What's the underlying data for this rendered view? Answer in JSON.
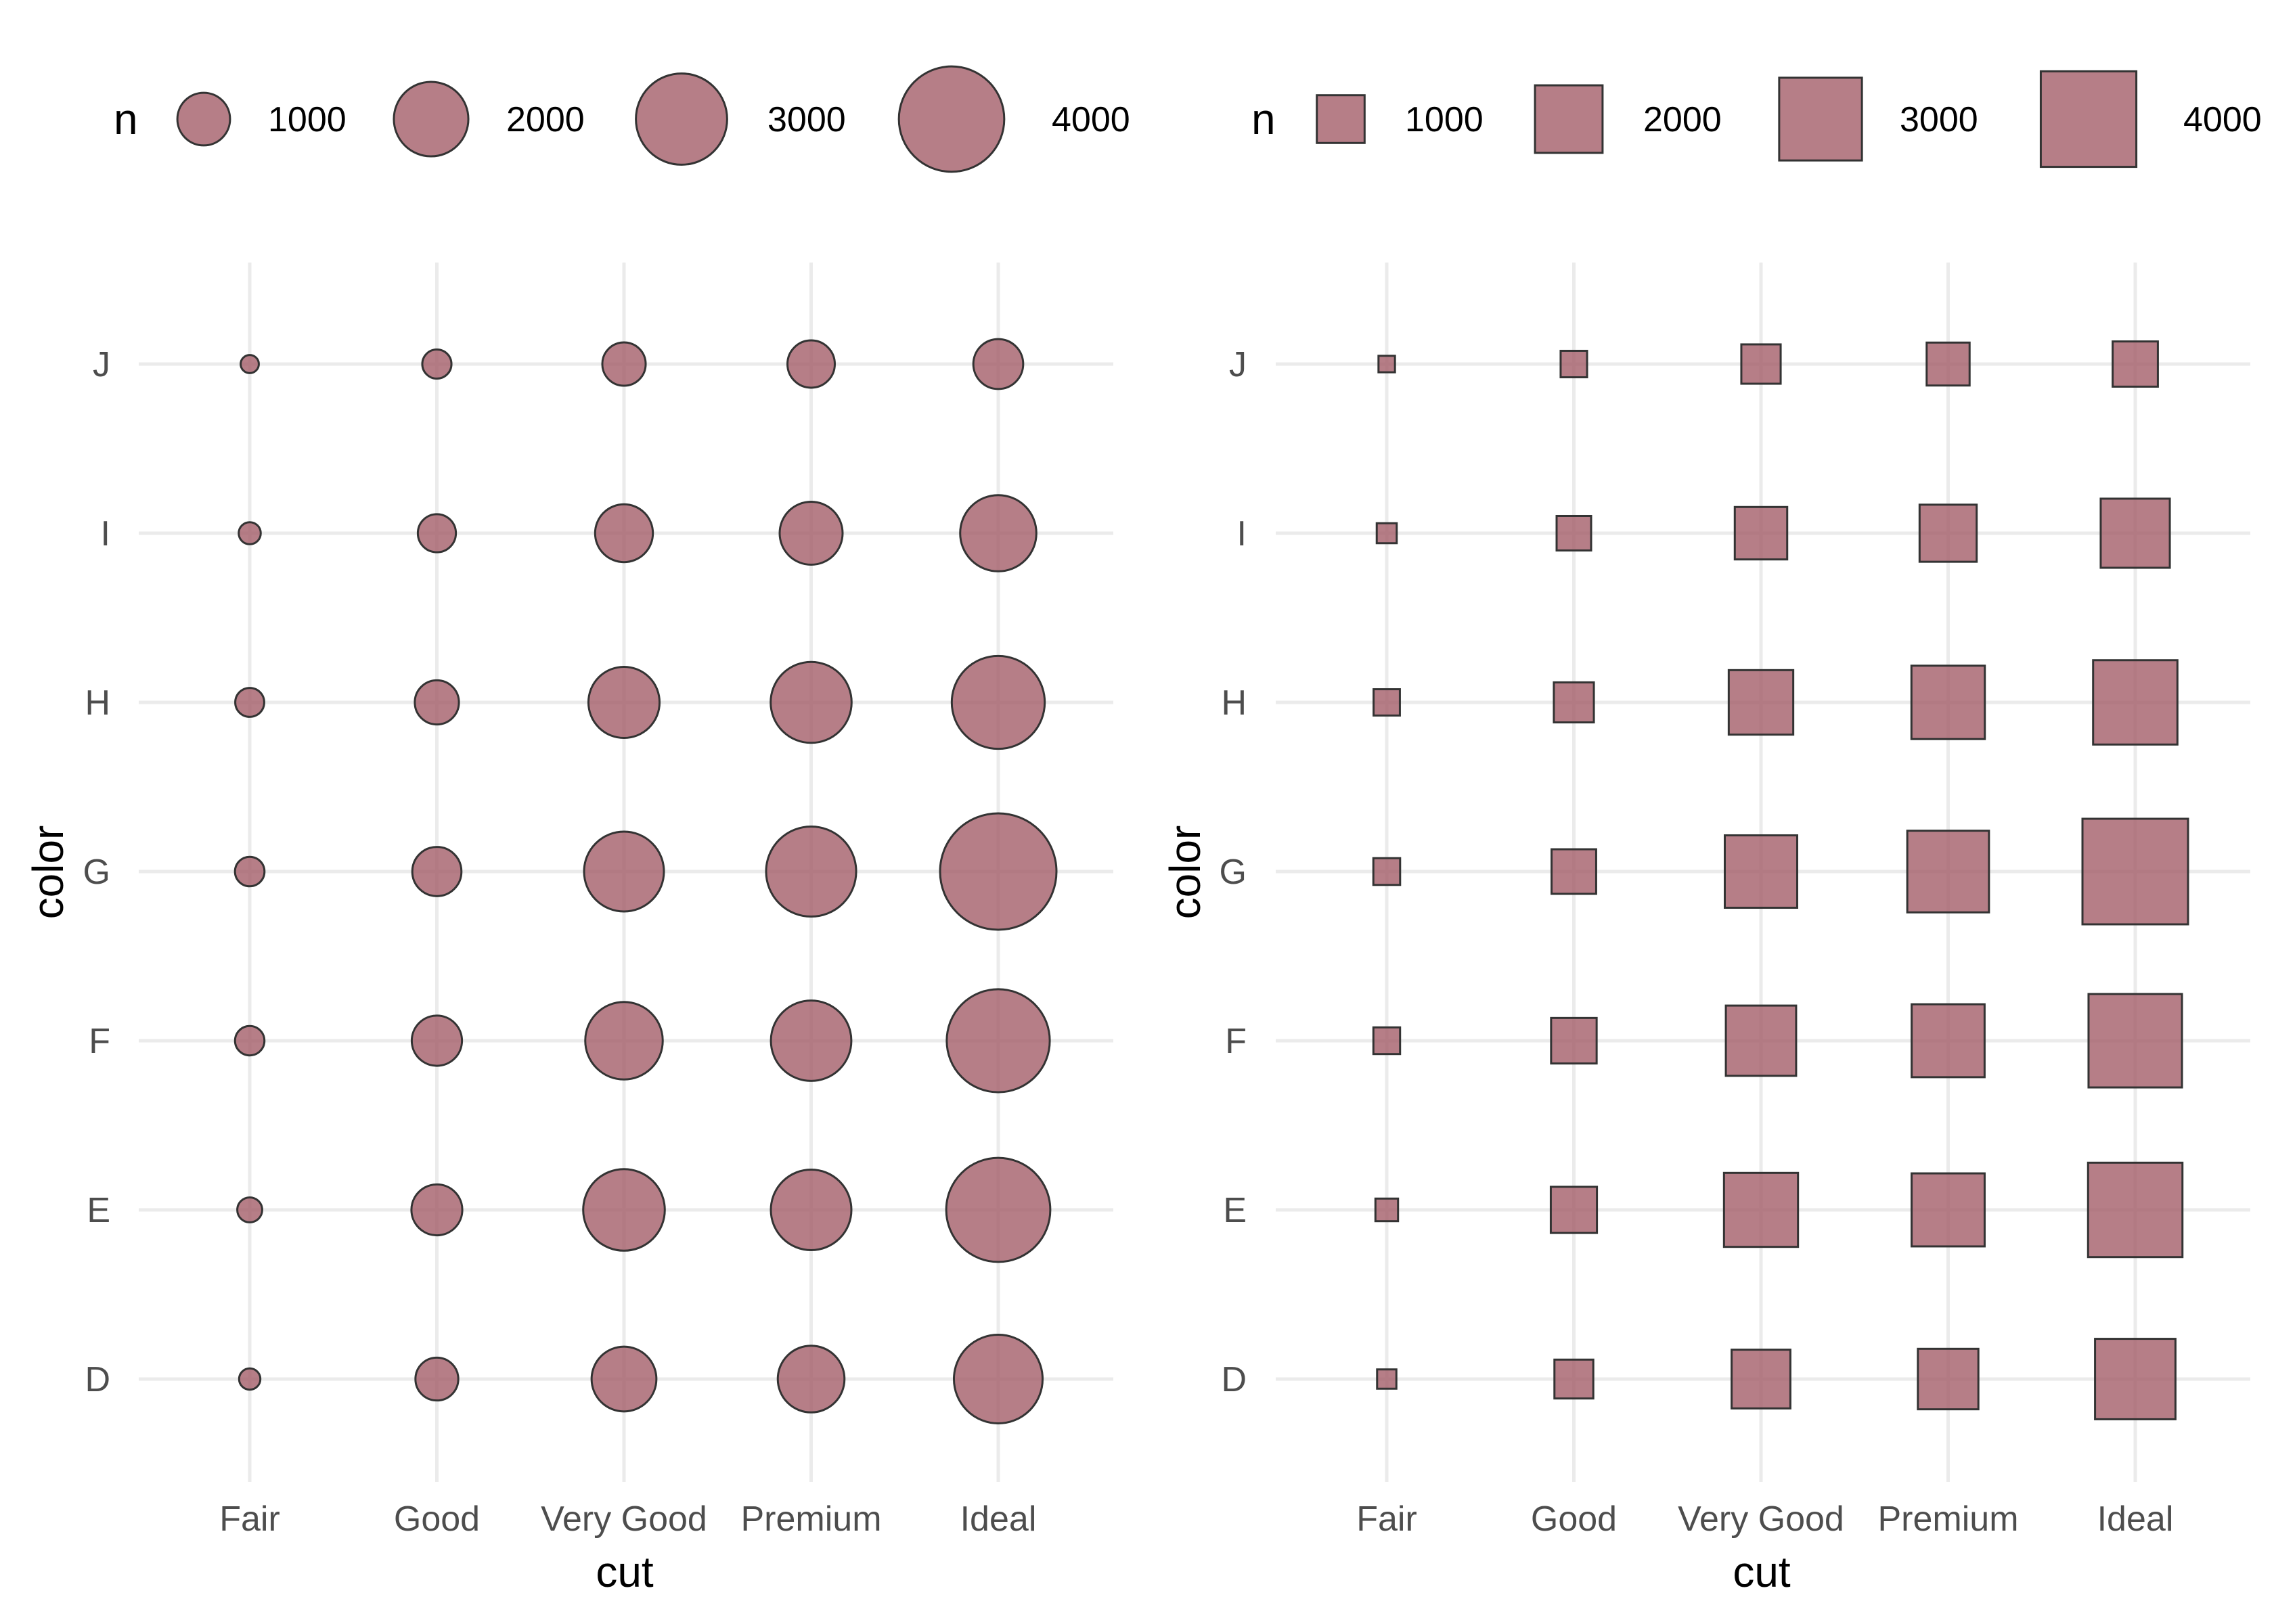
{
  "colors": {
    "fill": "#a45e69",
    "stroke": "#333333",
    "grid": "#ebebeb",
    "background": "#ffffff"
  },
  "chart_data": [
    {
      "type": "scatter",
      "shape": "circle",
      "xlabel": "cut",
      "ylabel": "color",
      "categories_x": [
        "Fair",
        "Good",
        "Very Good",
        "Premium",
        "Ideal"
      ],
      "categories_y": [
        "D",
        "E",
        "F",
        "G",
        "H",
        "I",
        "J"
      ],
      "legend": {
        "title": "n",
        "placement": "top",
        "breaks": [
          1000,
          2000,
          3000,
          4000
        ],
        "labels": [
          "1000",
          "2000",
          "3000",
          "4000"
        ]
      },
      "grid": true,
      "size_variable": "n",
      "points": [
        {
          "x": "Fair",
          "y": "D",
          "n": 163
        },
        {
          "x": "Fair",
          "y": "E",
          "n": 224
        },
        {
          "x": "Fair",
          "y": "F",
          "n": 312
        },
        {
          "x": "Fair",
          "y": "G",
          "n": 314
        },
        {
          "x": "Fair",
          "y": "H",
          "n": 303
        },
        {
          "x": "Fair",
          "y": "I",
          "n": 175
        },
        {
          "x": "Fair",
          "y": "J",
          "n": 119
        },
        {
          "x": "Good",
          "y": "D",
          "n": 662
        },
        {
          "x": "Good",
          "y": "E",
          "n": 933
        },
        {
          "x": "Good",
          "y": "F",
          "n": 909
        },
        {
          "x": "Good",
          "y": "G",
          "n": 871
        },
        {
          "x": "Good",
          "y": "H",
          "n": 702
        },
        {
          "x": "Good",
          "y": "I",
          "n": 522
        },
        {
          "x": "Good",
          "y": "J",
          "n": 307
        },
        {
          "x": "Very Good",
          "y": "D",
          "n": 1513
        },
        {
          "x": "Very Good",
          "y": "E",
          "n": 2400
        },
        {
          "x": "Very Good",
          "y": "F",
          "n": 2164
        },
        {
          "x": "Very Good",
          "y": "G",
          "n": 2299
        },
        {
          "x": "Very Good",
          "y": "H",
          "n": 1824
        },
        {
          "x": "Very Good",
          "y": "I",
          "n": 1204
        },
        {
          "x": "Very Good",
          "y": "J",
          "n": 678
        },
        {
          "x": "Premium",
          "y": "D",
          "n": 1603
        },
        {
          "x": "Premium",
          "y": "E",
          "n": 2337
        },
        {
          "x": "Premium",
          "y": "F",
          "n": 2331
        },
        {
          "x": "Premium",
          "y": "G",
          "n": 2924
        },
        {
          "x": "Premium",
          "y": "H",
          "n": 2360
        },
        {
          "x": "Premium",
          "y": "I",
          "n": 1428
        },
        {
          "x": "Premium",
          "y": "J",
          "n": 808
        },
        {
          "x": "Ideal",
          "y": "D",
          "n": 2834
        },
        {
          "x": "Ideal",
          "y": "E",
          "n": 3903
        },
        {
          "x": "Ideal",
          "y": "F",
          "n": 3826
        },
        {
          "x": "Ideal",
          "y": "G",
          "n": 4884
        },
        {
          "x": "Ideal",
          "y": "H",
          "n": 3115
        },
        {
          "x": "Ideal",
          "y": "I",
          "n": 2093
        },
        {
          "x": "Ideal",
          "y": "J",
          "n": 896
        }
      ]
    },
    {
      "type": "scatter",
      "shape": "square",
      "xlabel": "cut",
      "ylabel": "color",
      "categories_x": [
        "Fair",
        "Good",
        "Very Good",
        "Premium",
        "Ideal"
      ],
      "categories_y": [
        "D",
        "E",
        "F",
        "G",
        "H",
        "I",
        "J"
      ],
      "legend": {
        "title": "n",
        "placement": "top",
        "breaks": [
          1000,
          2000,
          3000,
          4000
        ],
        "labels": [
          "1000",
          "2000",
          "3000",
          "4000"
        ]
      },
      "grid": true,
      "size_variable": "n",
      "points": [
        {
          "x": "Fair",
          "y": "D",
          "n": 163
        },
        {
          "x": "Fair",
          "y": "E",
          "n": 224
        },
        {
          "x": "Fair",
          "y": "F",
          "n": 312
        },
        {
          "x": "Fair",
          "y": "G",
          "n": 314
        },
        {
          "x": "Fair",
          "y": "H",
          "n": 303
        },
        {
          "x": "Fair",
          "y": "I",
          "n": 175
        },
        {
          "x": "Fair",
          "y": "J",
          "n": 119
        },
        {
          "x": "Good",
          "y": "D",
          "n": 662
        },
        {
          "x": "Good",
          "y": "E",
          "n": 933
        },
        {
          "x": "Good",
          "y": "F",
          "n": 909
        },
        {
          "x": "Good",
          "y": "G",
          "n": 871
        },
        {
          "x": "Good",
          "y": "H",
          "n": 702
        },
        {
          "x": "Good",
          "y": "I",
          "n": 522
        },
        {
          "x": "Good",
          "y": "J",
          "n": 307
        },
        {
          "x": "Very Good",
          "y": "D",
          "n": 1513
        },
        {
          "x": "Very Good",
          "y": "E",
          "n": 2400
        },
        {
          "x": "Very Good",
          "y": "F",
          "n": 2164
        },
        {
          "x": "Very Good",
          "y": "G",
          "n": 2299
        },
        {
          "x": "Very Good",
          "y": "H",
          "n": 1824
        },
        {
          "x": "Very Good",
          "y": "I",
          "n": 1204
        },
        {
          "x": "Very Good",
          "y": "J",
          "n": 678
        },
        {
          "x": "Premium",
          "y": "D",
          "n": 1603
        },
        {
          "x": "Premium",
          "y": "E",
          "n": 2337
        },
        {
          "x": "Premium",
          "y": "F",
          "n": 2331
        },
        {
          "x": "Premium",
          "y": "G",
          "n": 2924
        },
        {
          "x": "Premium",
          "y": "H",
          "n": 2360
        },
        {
          "x": "Premium",
          "y": "I",
          "n": 1428
        },
        {
          "x": "Premium",
          "y": "J",
          "n": 808
        },
        {
          "x": "Ideal",
          "y": "D",
          "n": 2834
        },
        {
          "x": "Ideal",
          "y": "E",
          "n": 3903
        },
        {
          "x": "Ideal",
          "y": "F",
          "n": 3826
        },
        {
          "x": "Ideal",
          "y": "G",
          "n": 4884
        },
        {
          "x": "Ideal",
          "y": "H",
          "n": 3115
        },
        {
          "x": "Ideal",
          "y": "I",
          "n": 2093
        },
        {
          "x": "Ideal",
          "y": "J",
          "n": 896
        }
      ]
    }
  ]
}
